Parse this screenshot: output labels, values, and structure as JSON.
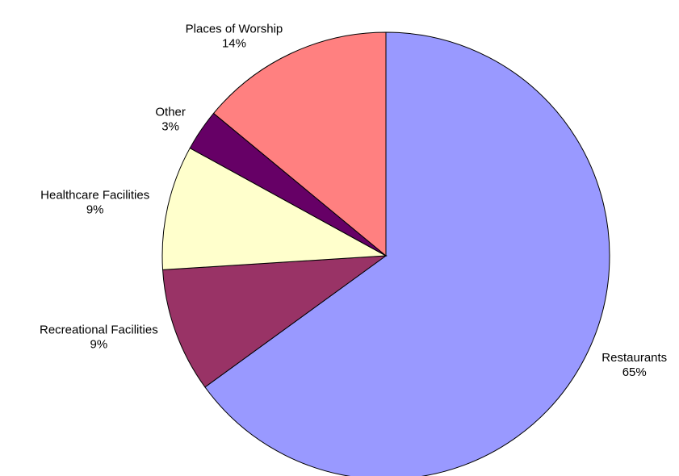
{
  "chart_data": {
    "type": "pie",
    "categories": [
      "Restaurants",
      "Recreational Facilities",
      "Healthcare Facilities",
      "Other",
      "Places of Worship"
    ],
    "values": [
      65,
      9,
      9,
      3,
      14
    ],
    "value_labels": [
      "65%",
      "9%",
      "9%",
      "3%",
      "14%"
    ],
    "colors": [
      "#9999ff",
      "#993366",
      "#ffffcc",
      "#660066",
      "#ff8080"
    ]
  }
}
